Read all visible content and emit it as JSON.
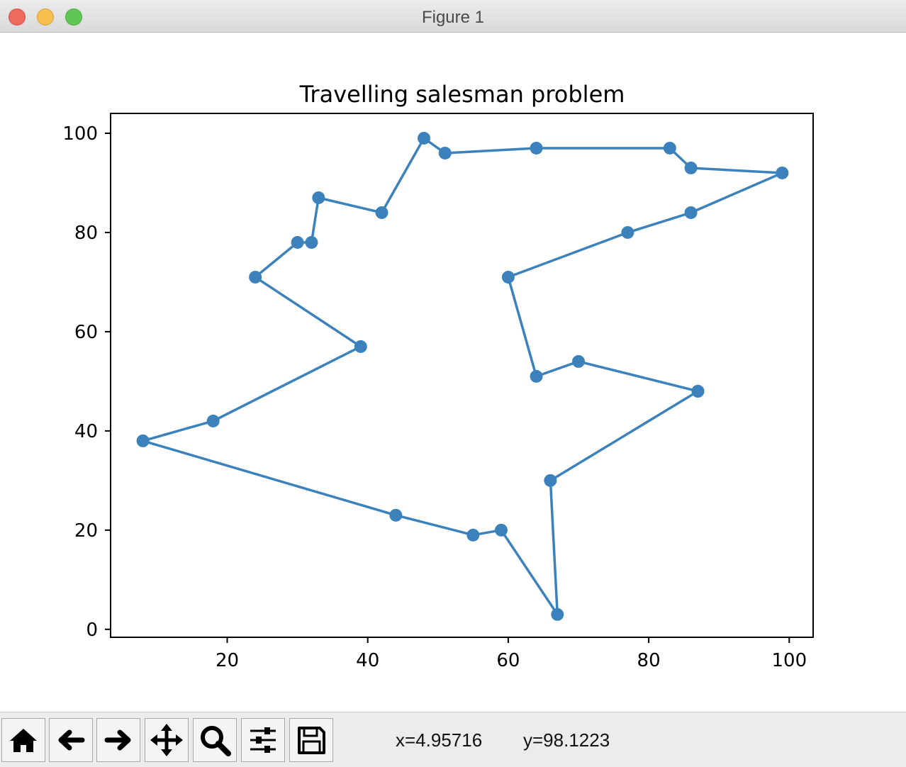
{
  "window": {
    "title": "Figure 1"
  },
  "colors": {
    "series": "#3b82bd",
    "axes": "#000000"
  },
  "toolbar": {
    "buttons": [
      {
        "name": "home-button",
        "icon": "home-icon"
      },
      {
        "name": "back-button",
        "icon": "arrow-left-icon"
      },
      {
        "name": "forward-button",
        "icon": "arrow-right-icon"
      },
      {
        "name": "pan-button",
        "icon": "move-icon"
      },
      {
        "name": "zoom-button",
        "icon": "magnifier-icon"
      },
      {
        "name": "configure-subplots-button",
        "icon": "sliders-icon"
      },
      {
        "name": "save-button",
        "icon": "floppy-disk-icon"
      }
    ],
    "coord_x": "x=4.95716",
    "coord_y": "y=98.1223"
  },
  "chart_data": {
    "type": "line",
    "title": "Travelling salesman problem",
    "xlabel": "",
    "ylabel": "",
    "xlim": [
      3.4,
      103.4
    ],
    "ylim": [
      -1.6,
      104.0
    ],
    "xticks": [
      20,
      40,
      60,
      80,
      100
    ],
    "yticks": [
      0,
      20,
      40,
      60,
      80,
      100
    ],
    "grid": false,
    "markers": true,
    "x": [
      87,
      66,
      67,
      59,
      55,
      44,
      8,
      18,
      39,
      24,
      30,
      32,
      33,
      42,
      48,
      51,
      64,
      83,
      86,
      99,
      86,
      77,
      60,
      64,
      70,
      87
    ],
    "y": [
      48,
      30,
      3,
      20,
      19,
      23,
      38,
      42,
      57,
      71,
      78,
      78,
      87,
      84,
      99,
      96,
      97,
      97,
      93,
      92,
      84,
      80,
      71,
      51,
      54,
      48
    ]
  }
}
